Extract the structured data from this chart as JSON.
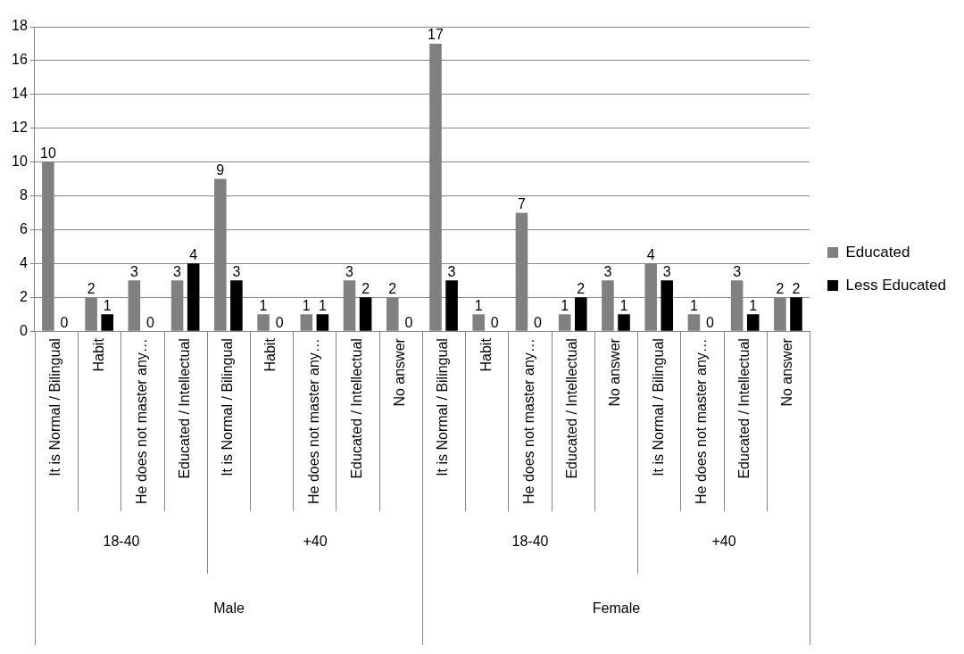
{
  "chart_data": {
    "type": "bar",
    "categories": [
      "It is Normal / Bilingual",
      "Habit",
      "He does not master any…",
      "Educated / Intellectual",
      "It is Normal / Bilingual",
      "Habit",
      "He does not master any…",
      "Educated / Intellectual",
      "No answer",
      "It is Normal / Bilingual",
      "Habit",
      "He does not master any…",
      "Educated / Intellectual",
      "No answer",
      "It is Normal / Bilingual",
      "He does not master any…",
      "Educated / Intellectual",
      "No answer"
    ],
    "series": [
      {
        "name": "Educated",
        "color": "#808080",
        "values": [
          10,
          2,
          3,
          3,
          9,
          1,
          1,
          3,
          2,
          17,
          1,
          7,
          1,
          3,
          4,
          1,
          3,
          2
        ]
      },
      {
        "name": "Less Educated",
        "color": "#000000",
        "values": [
          0,
          1,
          0,
          4,
          3,
          0,
          1,
          2,
          0,
          3,
          0,
          0,
          2,
          1,
          3,
          0,
          1,
          2
        ]
      }
    ],
    "annotations": [
      "18-40",
      "+40",
      "18-40",
      "+40",
      "Male",
      "Female"
    ],
    "ylim": [
      0,
      18
    ],
    "yticks": [
      0,
      2,
      4,
      6,
      8,
      10,
      12,
      14,
      16,
      18
    ],
    "grid": "y",
    "legend": "right",
    "data_labels": true
  }
}
